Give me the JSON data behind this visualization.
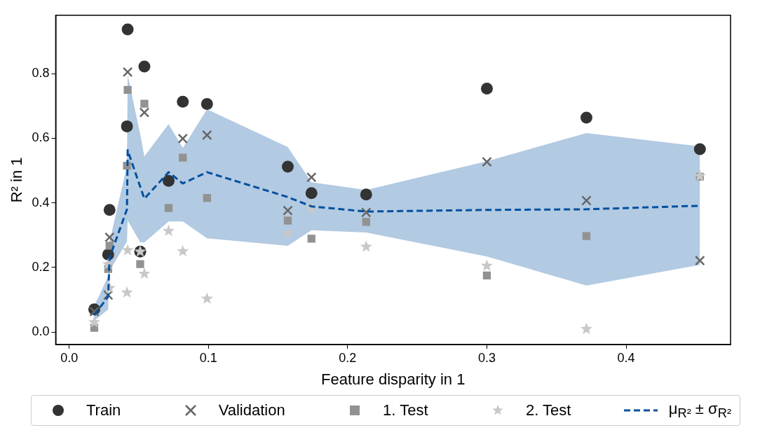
{
  "chart_data": {
    "type": "scatter",
    "xlabel": "Feature disparity in 1",
    "ylabel": "R² in 1",
    "x": [
      0.018,
      0.028,
      0.029,
      0.0415,
      0.042,
      0.051,
      0.054,
      0.0714,
      0.0816,
      0.099,
      0.157,
      0.174,
      0.2133,
      0.3,
      0.3715,
      0.453
    ],
    "series": [
      {
        "name": "Train",
        "color": "#333333",
        "marker": "circle",
        "values": [
          0.07,
          0.24,
          0.378,
          0.637,
          0.937,
          0.249,
          0.822,
          0.468,
          0.713,
          0.706,
          0.512,
          0.43,
          0.426,
          0.754,
          0.664,
          0.566
        ]
      },
      {
        "name": "Validation",
        "color": "#666666",
        "marker": "cross",
        "values": [
          0.063,
          0.114,
          0.293,
          null,
          0.805,
          null,
          0.68,
          null,
          0.599,
          0.61,
          0.376,
          0.479,
          0.37,
          0.527,
          0.407,
          0.221
        ]
      },
      {
        "name": "1. Test",
        "color": "#929292",
        "marker": "square",
        "values": [
          0.013,
          0.195,
          0.267,
          0.515,
          0.75,
          0.21,
          0.707,
          0.384,
          0.54,
          0.415,
          0.345,
          0.289,
          0.341,
          0.175,
          0.297,
          0.481
        ]
      },
      {
        "name": "2. Test",
        "color": "#c8c8c8",
        "marker": "star",
        "values": [
          0.03,
          0.21,
          0.136,
          0.122,
          0.253,
          0.249,
          0.18,
          0.313,
          0.25,
          0.103,
          0.306,
          0.383,
          0.264,
          0.205,
          0.009,
          0.483
        ]
      },
      {
        "name": "μ$_{R²}$ ± σ$_{R²}$",
        "type": "line",
        "color": "#0050a0",
        "line_style": "dashed",
        "marker": "none",
        "values": [
          0.052,
          0.11,
          0.23,
          0.38,
          0.563,
          0.45,
          0.413,
          0.495,
          0.46,
          0.495,
          0.418,
          0.389,
          0.373,
          0.378,
          0.38,
          0.391
        ],
        "lower": [
          0.035,
          0.07,
          0.19,
          0.28,
          0.345,
          0.278,
          0.277,
          0.342,
          0.342,
          0.29,
          0.267,
          0.315,
          0.308,
          0.234,
          0.144,
          0.208
        ],
        "upper": [
          0.08,
          0.173,
          0.28,
          0.515,
          0.796,
          0.613,
          0.544,
          0.644,
          0.57,
          0.69,
          0.573,
          0.464,
          0.44,
          0.529,
          0.616,
          0.575
        ]
      }
    ],
    "xlim": [
      -0.0097,
      0.475
    ],
    "ylim": [
      -0.039,
      0.981
    ],
    "xticks": [
      {
        "value": 0,
        "label": "0.0"
      },
      {
        "value": 0.1,
        "label": "0.1"
      },
      {
        "value": 0.2,
        "label": "0.2"
      },
      {
        "value": 0.3,
        "label": "0.3"
      },
      {
        "value": 0.4,
        "label": "0.4"
      }
    ],
    "yticks": [
      {
        "value": 0,
        "label": "0.0"
      },
      {
        "value": 0.2,
        "label": "0.2"
      },
      {
        "value": 0.4,
        "label": "0.4"
      },
      {
        "value": 0.6,
        "label": "0.6"
      },
      {
        "value": 0.8,
        "label": "0.8"
      }
    ],
    "legend": "bottom"
  }
}
